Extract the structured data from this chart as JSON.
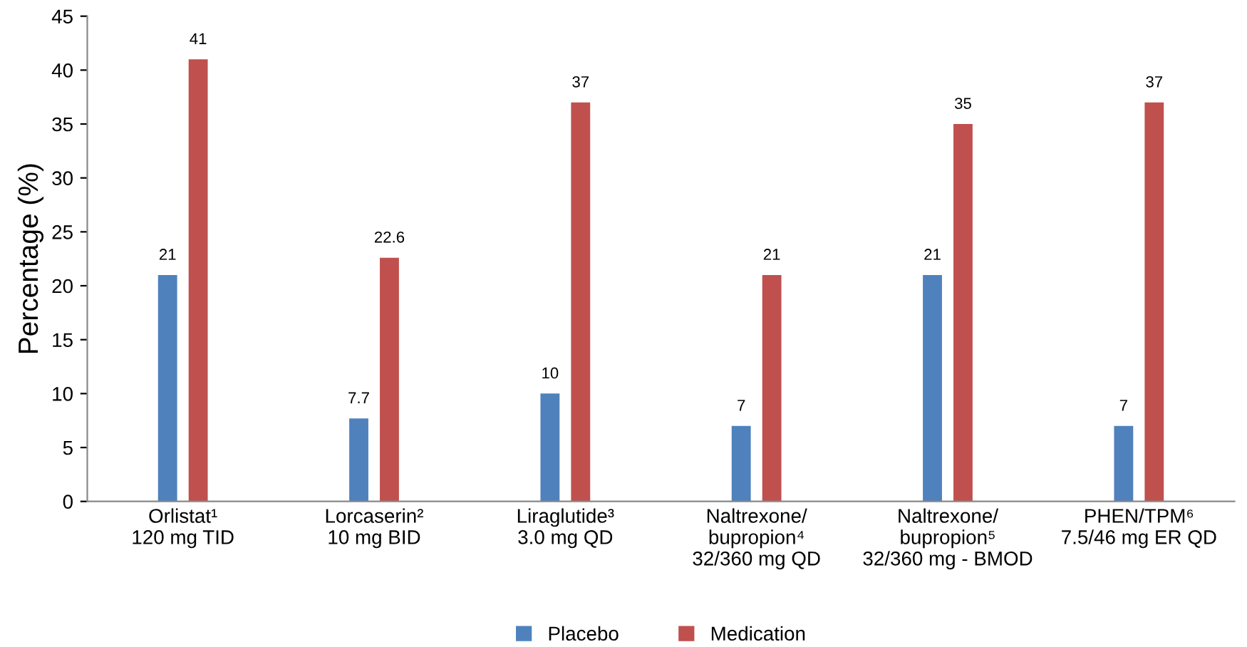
{
  "chart_data": {
    "type": "bar",
    "ylabel": "Percentage (%)",
    "categories": [
      "Orlistat¹\n120 mg TID",
      "Lorcaserin²\n10 mg BID",
      "Liraglutide³\n3.0 mg QD",
      "Naltrexone/\nbupropion⁴\n32/360 mg QD",
      "Naltrexone/\nbupropion⁵\n32/360 mg - BMOD",
      "PHEN/TPM⁶\n7.5/46 mg ER QD"
    ],
    "series": [
      {
        "name": "Placebo",
        "color": "#4f81bd",
        "values": [
          21,
          7.7,
          10,
          7,
          21,
          7
        ]
      },
      {
        "name": "Medication",
        "color": "#c0504d",
        "values": [
          41,
          22.6,
          37,
          21,
          35,
          37
        ]
      }
    ],
    "ylim": [
      0,
      45
    ],
    "yticks": [
      0,
      5,
      10,
      15,
      20,
      25,
      30,
      35,
      40,
      45
    ],
    "data_labels": true,
    "legend": "bottom",
    "grid": false
  }
}
